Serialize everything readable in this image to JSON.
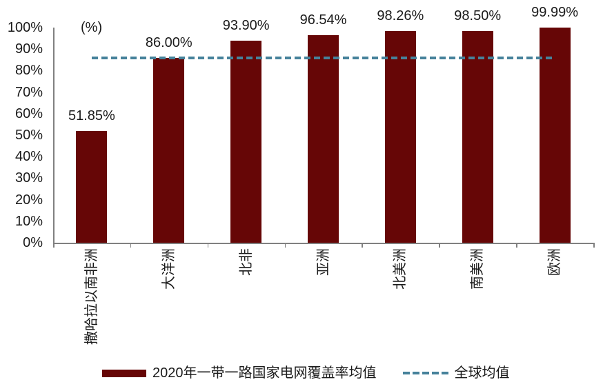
{
  "chart_data": {
    "type": "bar",
    "unit_label": "(%)",
    "categories": [
      "撒哈拉以南非洲",
      "大洋洲",
      "北非",
      "亚洲",
      "北美洲",
      "南美洲",
      "欧洲"
    ],
    "values": [
      51.85,
      86.0,
      93.9,
      96.54,
      98.26,
      98.5,
      99.99
    ],
    "value_labels": [
      "51.85%",
      "86.00%",
      "93.90%",
      "96.54%",
      "98.26%",
      "98.50%",
      "99.99%"
    ],
    "series_label": "2020年一带一路国家电网覆盖率均值",
    "reference_line": {
      "label": "全球均值",
      "value": 86.0
    },
    "ylim": [
      0,
      100
    ],
    "ytick_labels": [
      "0%",
      "10%",
      "20%",
      "30%",
      "40%",
      "50%",
      "60%",
      "70%",
      "80%",
      "90%",
      "100%"
    ],
    "grid": false,
    "legend_position": "bottom",
    "colors": {
      "bar": "#660606",
      "reference_line": "#46829B",
      "axis": "#808080",
      "text": "#1A1A1A"
    }
  }
}
